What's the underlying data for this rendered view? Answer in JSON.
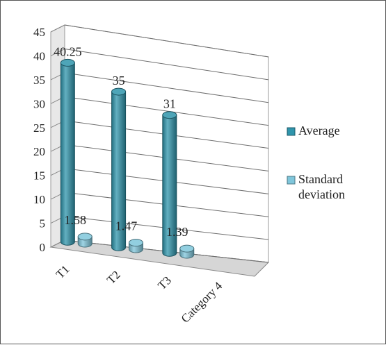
{
  "chart_data": {
    "type": "bar",
    "style": "3d-cylinder",
    "categories": [
      "T1",
      "T2",
      "T3",
      "Category 4"
    ],
    "series": [
      {
        "name": "Average",
        "values": [
          40.25,
          35,
          31,
          null
        ],
        "color": "#2f95ac",
        "labels": [
          "40.25",
          "35",
          "31",
          ""
        ]
      },
      {
        "name": "Standard deviation",
        "values": [
          1.58,
          1.47,
          1.39,
          null
        ],
        "color": "#7fc6db",
        "labels": [
          "1.58",
          "1.47",
          "1.39",
          ""
        ]
      }
    ],
    "y_ticks": [
      "0",
      "5",
      "10",
      "15",
      "20",
      "25",
      "30",
      "35",
      "40",
      "45"
    ],
    "ylim": [
      0,
      45
    ],
    "grid": true,
    "legend": "right",
    "legend_items": [
      {
        "lines": [
          "Average"
        ]
      },
      {
        "lines": [
          "Standard",
          "deviation"
        ]
      }
    ]
  }
}
